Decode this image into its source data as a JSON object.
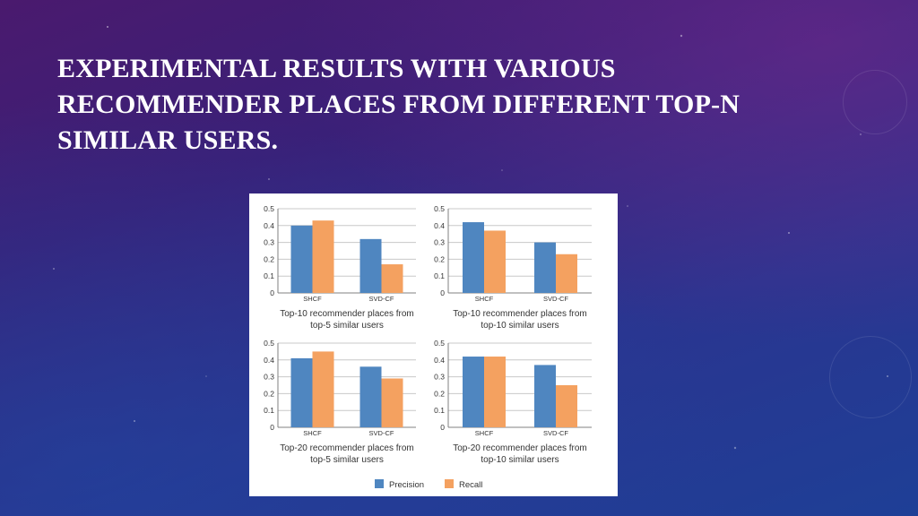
{
  "slide": {
    "title": "EXPERIMENTAL RESULTS WITH VARIOUS RECOMMENDER PLACES FROM DIFFERENT TOP-N SIMILAR USERS."
  },
  "colors": {
    "precision": "#4f86c0",
    "recall": "#f4a160",
    "grid": "#c8c8c8",
    "axis": "#808080",
    "text": "#333333"
  },
  "chart_data": [
    {
      "type": "bar",
      "categories": [
        "SHCF",
        "SVD-CF"
      ],
      "series": [
        {
          "name": "Precision",
          "values": [
            0.4,
            0.32
          ]
        },
        {
          "name": "Recall",
          "values": [
            0.43,
            0.17
          ]
        }
      ],
      "caption": [
        "Top-10 recommender places from",
        "top-5 similar users"
      ],
      "yticks": [
        "0",
        "0.1",
        "0.2",
        "0.3",
        "0.4",
        "0.5"
      ],
      "ylim": [
        0,
        0.5
      ],
      "grid": true
    },
    {
      "type": "bar",
      "categories": [
        "SHCF",
        "SVD-CF"
      ],
      "series": [
        {
          "name": "Precision",
          "values": [
            0.42,
            0.3
          ]
        },
        {
          "name": "Recall",
          "values": [
            0.37,
            0.23
          ]
        }
      ],
      "caption": [
        "Top-10 recommender places from",
        "top-10 similar users"
      ],
      "yticks": [
        "0",
        "0.1",
        "0.2",
        "0.3",
        "0.4",
        "0.5"
      ],
      "ylim": [
        0,
        0.5
      ],
      "grid": true
    },
    {
      "type": "bar",
      "categories": [
        "SHCF",
        "SVD-CF"
      ],
      "series": [
        {
          "name": "Precision",
          "values": [
            0.41,
            0.36
          ]
        },
        {
          "name": "Recall",
          "values": [
            0.45,
            0.29
          ]
        }
      ],
      "caption": [
        "Top-20 recommender places from",
        "top-5 similar users"
      ],
      "yticks": [
        "0",
        "0.1",
        "0.2",
        "0.3",
        "0.4",
        "0.5"
      ],
      "ylim": [
        0,
        0.5
      ],
      "grid": true
    },
    {
      "type": "bar",
      "categories": [
        "SHCF",
        "SVD-CF"
      ],
      "series": [
        {
          "name": "Precision",
          "values": [
            0.42,
            0.37
          ]
        },
        {
          "name": "Recall",
          "values": [
            0.42,
            0.25
          ]
        }
      ],
      "caption": [
        "Top-20 recommender places from",
        "top-10 similar users"
      ],
      "yticks": [
        "0",
        "0.1",
        "0.2",
        "0.3",
        "0.4",
        "0.5"
      ],
      "ylim": [
        0,
        0.5
      ],
      "grid": true
    }
  ],
  "legend": {
    "position": "bottom",
    "items": [
      {
        "label": "Precision"
      },
      {
        "label": "Recall"
      }
    ]
  }
}
